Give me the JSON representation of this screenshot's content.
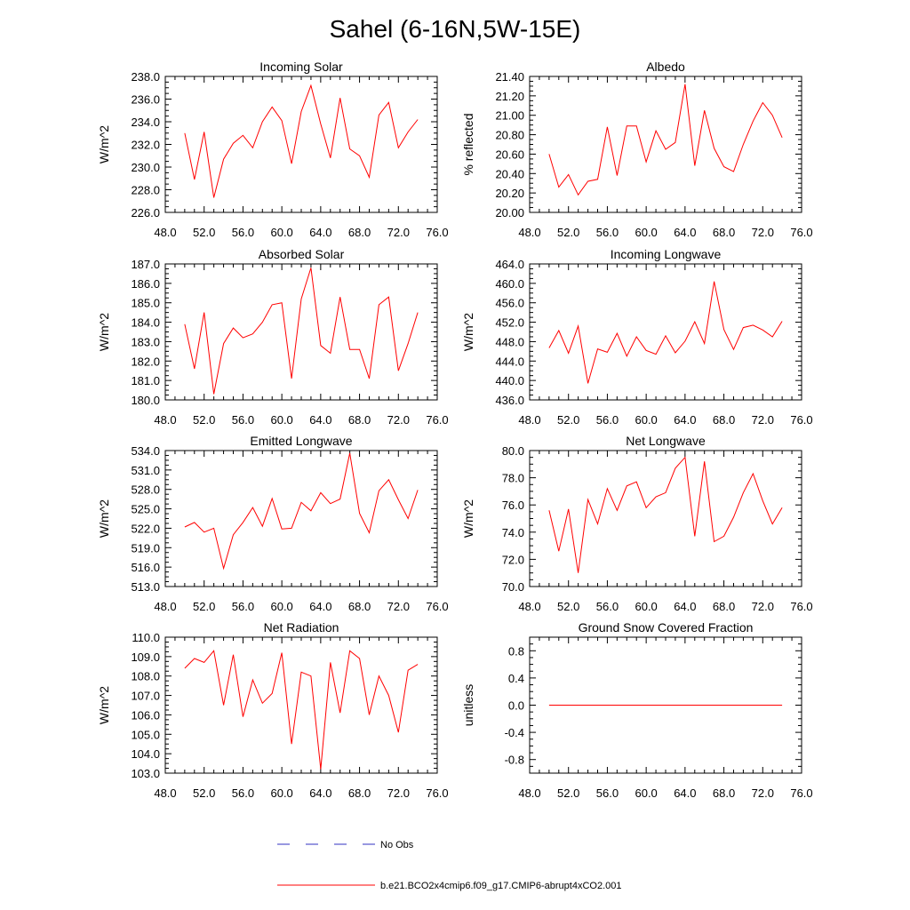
{
  "figure": {
    "title": "Sahel (6-16N,5W-15E)"
  },
  "legend": {
    "entries": [
      {
        "label": "No Obs",
        "color": "#3030c0",
        "style": "dashed"
      },
      {
        "label": "b.e21.BCO2x4cmip6.f09_g17.CMIP6-abrupt4xCO2.001",
        "color": "#ff0000",
        "style": "solid"
      }
    ]
  },
  "chart_data": [
    {
      "type": "line",
      "title": "Incoming Solar",
      "xlabel": "",
      "ylabel": "W/m^2",
      "xlim": [
        48,
        76
      ],
      "ylim": [
        226,
        238
      ],
      "xticks": [
        48,
        52,
        56,
        60,
        64,
        68,
        72,
        76
      ],
      "xtick_labels": [
        "48.0",
        "52.0",
        "56.0",
        "60.0",
        "64.0",
        "68.0",
        "72.0",
        "76.0"
      ],
      "yticks": [
        226,
        228,
        230,
        232,
        234,
        236,
        238
      ],
      "ytick_labels": [
        "226.0",
        "228.0",
        "230.0",
        "232.0",
        "234.0",
        "236.0",
        "238.0"
      ],
      "series": [
        {
          "name": "b.e21.BCO2x4cmip6.f09_g17.CMIP6-abrupt4xCO2.001",
          "color": "#ff0000",
          "x": [
            50,
            51,
            52,
            53,
            54,
            55,
            56,
            57,
            58,
            59,
            60,
            61,
            62,
            63,
            64,
            65,
            66,
            67,
            68,
            69,
            70,
            71,
            72,
            73,
            74
          ],
          "y": [
            233.0,
            228.9,
            233.1,
            227.3,
            230.7,
            232.1,
            232.8,
            231.7,
            234.0,
            235.3,
            234.1,
            230.3,
            234.9,
            237.2,
            233.8,
            230.8,
            236.1,
            231.6,
            231.0,
            229.1,
            234.6,
            235.7,
            231.7,
            233.1,
            234.2
          ]
        }
      ]
    },
    {
      "type": "line",
      "title": "Albedo",
      "xlabel": "",
      "ylabel": "% reflected",
      "xlim": [
        48,
        76
      ],
      "ylim": [
        20.0,
        21.4
      ],
      "xticks": [
        48,
        52,
        56,
        60,
        64,
        68,
        72,
        76
      ],
      "xtick_labels": [
        "48.0",
        "52.0",
        "56.0",
        "60.0",
        "64.0",
        "68.0",
        "72.0",
        "76.0"
      ],
      "yticks": [
        20.0,
        20.2,
        20.4,
        20.6,
        20.8,
        21.0,
        21.2,
        21.4
      ],
      "ytick_labels": [
        "20.00",
        "20.20",
        "20.40",
        "20.60",
        "20.80",
        "21.00",
        "21.20",
        "21.40"
      ],
      "series": [
        {
          "name": "b.e21.BCO2x4cmip6.f09_g17.CMIP6-abrupt4xCO2.001",
          "color": "#ff0000",
          "x": [
            50,
            51,
            52,
            53,
            54,
            55,
            56,
            57,
            58,
            59,
            60,
            61,
            62,
            63,
            64,
            65,
            66,
            67,
            68,
            69,
            70,
            71,
            72,
            73,
            74
          ],
          "y": [
            20.6,
            20.26,
            20.39,
            20.18,
            20.32,
            20.34,
            20.88,
            20.38,
            20.89,
            20.89,
            20.52,
            20.84,
            20.65,
            20.72,
            21.32,
            20.48,
            21.05,
            20.66,
            20.47,
            20.42,
            20.7,
            20.94,
            21.13,
            21.0,
            20.77
          ]
        }
      ]
    },
    {
      "type": "line",
      "title": "Absorbed Solar",
      "xlabel": "",
      "ylabel": "W/m^2",
      "xlim": [
        48,
        76
      ],
      "ylim": [
        180,
        187
      ],
      "xticks": [
        48,
        52,
        56,
        60,
        64,
        68,
        72,
        76
      ],
      "xtick_labels": [
        "48.0",
        "52.0",
        "56.0",
        "60.0",
        "64.0",
        "68.0",
        "72.0",
        "76.0"
      ],
      "yticks": [
        180,
        181,
        182,
        183,
        184,
        185,
        186,
        187
      ],
      "ytick_labels": [
        "180.0",
        "181.0",
        "182.0",
        "183.0",
        "184.0",
        "185.0",
        "186.0",
        "187.0"
      ],
      "series": [
        {
          "name": "b.e21.BCO2x4cmip6.f09_g17.CMIP6-abrupt4xCO2.001",
          "color": "#ff0000",
          "x": [
            50,
            51,
            52,
            53,
            54,
            55,
            56,
            57,
            58,
            59,
            60,
            61,
            62,
            63,
            64,
            65,
            66,
            67,
            68,
            69,
            70,
            71,
            72,
            73,
            74
          ],
          "y": [
            183.9,
            181.6,
            184.5,
            180.3,
            182.9,
            183.7,
            183.2,
            183.4,
            184.0,
            184.9,
            185.0,
            181.1,
            185.2,
            186.8,
            182.8,
            182.4,
            185.3,
            182.6,
            182.6,
            181.1,
            184.9,
            185.3,
            181.5,
            182.9,
            184.5
          ]
        }
      ]
    },
    {
      "type": "line",
      "title": "Incoming Longwave",
      "xlabel": "",
      "ylabel": "W/m^2",
      "xlim": [
        48,
        76
      ],
      "ylim": [
        436,
        464
      ],
      "xticks": [
        48,
        52,
        56,
        60,
        64,
        68,
        72,
        76
      ],
      "xtick_labels": [
        "48.0",
        "52.0",
        "56.0",
        "60.0",
        "64.0",
        "68.0",
        "72.0",
        "76.0"
      ],
      "yticks": [
        436,
        440,
        444,
        448,
        452,
        456,
        460,
        464
      ],
      "ytick_labels": [
        "436.0",
        "440.0",
        "444.0",
        "448.0",
        "452.0",
        "456.0",
        "460.0",
        "464.0"
      ],
      "series": [
        {
          "name": "b.e21.BCO2x4cmip6.f09_g17.CMIP6-abrupt4xCO2.001",
          "color": "#ff0000",
          "x": [
            50,
            51,
            52,
            53,
            54,
            55,
            56,
            57,
            58,
            59,
            60,
            61,
            62,
            63,
            64,
            65,
            66,
            67,
            68,
            69,
            70,
            71,
            72,
            73,
            74
          ],
          "y": [
            446.7,
            450.3,
            445.6,
            451.2,
            439.4,
            446.5,
            445.8,
            449.7,
            445.0,
            449.0,
            446.2,
            445.4,
            449.2,
            445.7,
            448.1,
            452.1,
            447.6,
            460.4,
            450.5,
            446.4,
            450.9,
            451.4,
            450.4,
            449.0,
            452.2
          ]
        }
      ]
    },
    {
      "type": "line",
      "title": "Emitted Longwave",
      "xlabel": "",
      "ylabel": "W/m^2",
      "xlim": [
        48,
        76
      ],
      "ylim": [
        513,
        534
      ],
      "xticks": [
        48,
        52,
        56,
        60,
        64,
        68,
        72,
        76
      ],
      "xtick_labels": [
        "48.0",
        "52.0",
        "56.0",
        "60.0",
        "64.0",
        "68.0",
        "72.0",
        "76.0"
      ],
      "yticks": [
        513,
        516,
        519,
        522,
        525,
        528,
        531,
        534
      ],
      "ytick_labels": [
        "513.0",
        "516.0",
        "519.0",
        "522.0",
        "525.0",
        "528.0",
        "531.0",
        "534.0"
      ],
      "series": [
        {
          "name": "b.e21.BCO2x4cmip6.f09_g17.CMIP6-abrupt4xCO2.001",
          "color": "#ff0000",
          "x": [
            50,
            51,
            52,
            53,
            54,
            55,
            56,
            57,
            58,
            59,
            60,
            61,
            62,
            63,
            64,
            65,
            66,
            67,
            68,
            69,
            70,
            71,
            72,
            73,
            74
          ],
          "y": [
            522.2,
            522.9,
            521.4,
            522.0,
            515.8,
            521.0,
            522.9,
            525.2,
            522.3,
            526.6,
            521.9,
            522.0,
            526.0,
            524.7,
            527.5,
            525.8,
            526.5,
            533.6,
            524.3,
            521.3,
            527.8,
            529.5,
            526.4,
            523.5,
            527.9
          ]
        }
      ]
    },
    {
      "type": "line",
      "title": "Net Longwave",
      "xlabel": "",
      "ylabel": "W/m^2",
      "xlim": [
        48,
        76
      ],
      "ylim": [
        70,
        80
      ],
      "xticks": [
        48,
        52,
        56,
        60,
        64,
        68,
        72,
        76
      ],
      "xtick_labels": [
        "48.0",
        "52.0",
        "56.0",
        "60.0",
        "64.0",
        "68.0",
        "72.0",
        "76.0"
      ],
      "yticks": [
        70,
        72,
        74,
        76,
        78,
        80
      ],
      "ytick_labels": [
        "70.0",
        "72.0",
        "74.0",
        "76.0",
        "78.0",
        "80.0"
      ],
      "series": [
        {
          "name": "b.e21.BCO2x4cmip6.f09_g17.CMIP6-abrupt4xCO2.001",
          "color": "#ff0000",
          "x": [
            50,
            51,
            52,
            53,
            54,
            55,
            56,
            57,
            58,
            59,
            60,
            61,
            62,
            63,
            64,
            65,
            66,
            67,
            68,
            69,
            70,
            71,
            72,
            73,
            74
          ],
          "y": [
            75.6,
            72.6,
            75.7,
            71.0,
            76.4,
            74.6,
            77.2,
            75.6,
            77.4,
            77.7,
            75.8,
            76.6,
            76.9,
            78.7,
            79.5,
            73.7,
            79.2,
            73.3,
            73.7,
            75.1,
            76.9,
            78.3,
            76.3,
            74.6,
            75.8
          ]
        }
      ]
    },
    {
      "type": "line",
      "title": "Net Radiation",
      "xlabel": "",
      "ylabel": "W/m^2",
      "xlim": [
        48,
        76
      ],
      "ylim": [
        103,
        110
      ],
      "xticks": [
        48,
        52,
        56,
        60,
        64,
        68,
        72,
        76
      ],
      "xtick_labels": [
        "48.0",
        "52.0",
        "56.0",
        "60.0",
        "64.0",
        "68.0",
        "72.0",
        "76.0"
      ],
      "yticks": [
        103,
        104,
        105,
        106,
        107,
        108,
        109,
        110
      ],
      "ytick_labels": [
        "103.0",
        "104.0",
        "105.0",
        "106.0",
        "107.0",
        "108.0",
        "109.0",
        "110.0"
      ],
      "series": [
        {
          "name": "b.e21.BCO2x4cmip6.f09_g17.CMIP6-abrupt4xCO2.001",
          "color": "#ff0000",
          "x": [
            50,
            51,
            52,
            53,
            54,
            55,
            56,
            57,
            58,
            59,
            60,
            61,
            62,
            63,
            64,
            65,
            66,
            67,
            68,
            69,
            70,
            71,
            72,
            73,
            74
          ],
          "y": [
            108.4,
            108.9,
            108.7,
            109.3,
            106.5,
            109.1,
            105.9,
            107.8,
            106.6,
            107.1,
            109.2,
            104.5,
            108.2,
            108.0,
            103.2,
            108.7,
            106.1,
            109.3,
            108.9,
            106.0,
            108.0,
            107.0,
            105.1,
            108.3,
            108.6
          ]
        }
      ]
    },
    {
      "type": "line",
      "title": "Ground Snow Covered Fraction",
      "xlabel": "",
      "ylabel": "unitless",
      "xlim": [
        48,
        76
      ],
      "ylim": [
        -1.0,
        1.0
      ],
      "xticks": [
        48,
        52,
        56,
        60,
        64,
        68,
        72,
        76
      ],
      "xtick_labels": [
        "48.0",
        "52.0",
        "56.0",
        "60.0",
        "64.0",
        "68.0",
        "72.0",
        "76.0"
      ],
      "yticks": [
        -0.8,
        -0.4,
        0.0,
        0.4,
        0.8
      ],
      "ytick_labels": [
        "-0.8",
        "-0.4",
        "0.0",
        "0.4",
        "0.8"
      ],
      "series": [
        {
          "name": "b.e21.BCO2x4cmip6.f09_g17.CMIP6-abrupt4xCO2.001",
          "color": "#ff0000",
          "x": [
            50,
            74
          ],
          "y": [
            0.0,
            0.0
          ]
        }
      ]
    }
  ]
}
